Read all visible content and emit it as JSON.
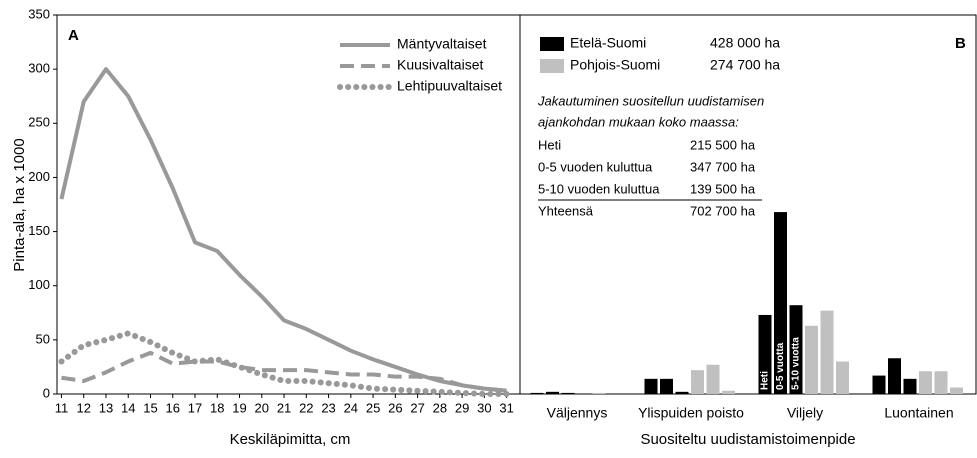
{
  "chart_data": [
    {
      "type": "line",
      "panel": "A",
      "ylabel": "Pinta-ala, ha x 1000",
      "xlabel": "Keskiläpimitta, cm",
      "x": [
        11,
        12,
        13,
        14,
        15,
        16,
        17,
        18,
        19,
        20,
        21,
        22,
        23,
        24,
        25,
        26,
        27,
        28,
        29,
        30,
        31
      ],
      "xticks": [
        11,
        12,
        13,
        14,
        15,
        16,
        17,
        18,
        19,
        20,
        21,
        22,
        23,
        24,
        25,
        26,
        27,
        28,
        29,
        30,
        31
      ],
      "xlim": [
        10.8,
        31.6
      ],
      "ylim": [
        0,
        350
      ],
      "yticks": [
        0,
        50,
        100,
        150,
        200,
        250,
        300,
        350
      ],
      "series": [
        {
          "name": "Mäntyvaltaiset",
          "color": "#999999",
          "style": "solid",
          "values": [
            180,
            270,
            300,
            275,
            235,
            190,
            140,
            132,
            110,
            90,
            68,
            60,
            50,
            40,
            32,
            25,
            18,
            12,
            8,
            5,
            3
          ]
        },
        {
          "name": "Kuusivaltaiset",
          "color": "#999999",
          "style": "dashed",
          "values": [
            15,
            12,
            20,
            30,
            38,
            28,
            30,
            30,
            25,
            22,
            22,
            22,
            20,
            18,
            18,
            16,
            16,
            14,
            8,
            5,
            3
          ]
        },
        {
          "name": "Lehtipuuvaltaiset",
          "color": "#999999",
          "style": "dotted",
          "values": [
            30,
            45,
            50,
            56,
            48,
            38,
            30,
            32,
            25,
            18,
            12,
            12,
            10,
            8,
            5,
            4,
            3,
            2,
            1,
            0,
            0
          ]
        }
      ]
    },
    {
      "type": "bar",
      "panel": "B",
      "xlabel": "Suositeltu uudistamistoimenpide",
      "categories": [
        "Väljennys",
        "Ylispuiden poisto",
        "Viljely",
        "Luontainen"
      ],
      "ylim": [
        0,
        350
      ],
      "bar_labels": [
        "Heti",
        "0-5 vuotta",
        "5-10 vuotta"
      ],
      "series": [
        {
          "name": "Etelä-Suomi",
          "area": "428 000 ha",
          "color": "#000000",
          "values": [
            [
              1,
              2,
              1
            ],
            [
              14,
              14,
              2
            ],
            [
              73,
              168,
              82
            ],
            [
              17,
              33,
              14
            ]
          ]
        },
        {
          "name": "Pohjois-Suomi",
          "area": "274 700 ha",
          "color": "#c0c0c0",
          "values": [
            [
              0,
              1,
              0
            ],
            [
              22,
              27,
              3
            ],
            [
              63,
              77,
              30
            ],
            [
              21,
              21,
              6
            ]
          ]
        }
      ],
      "annotation": [
        "Jakautuminen suositellun uudistamisen",
        "ajankohdan mukaan koko maassa:"
      ],
      "table": [
        [
          "Heti",
          "215 500 ha"
        ],
        [
          "0-5 vuoden kuluttua",
          "347 700 ha"
        ],
        [
          "5-10 vuoden kuluttua",
          "139 500 ha"
        ],
        [
          "Yhteensä",
          "702 700 ha"
        ]
      ]
    }
  ]
}
